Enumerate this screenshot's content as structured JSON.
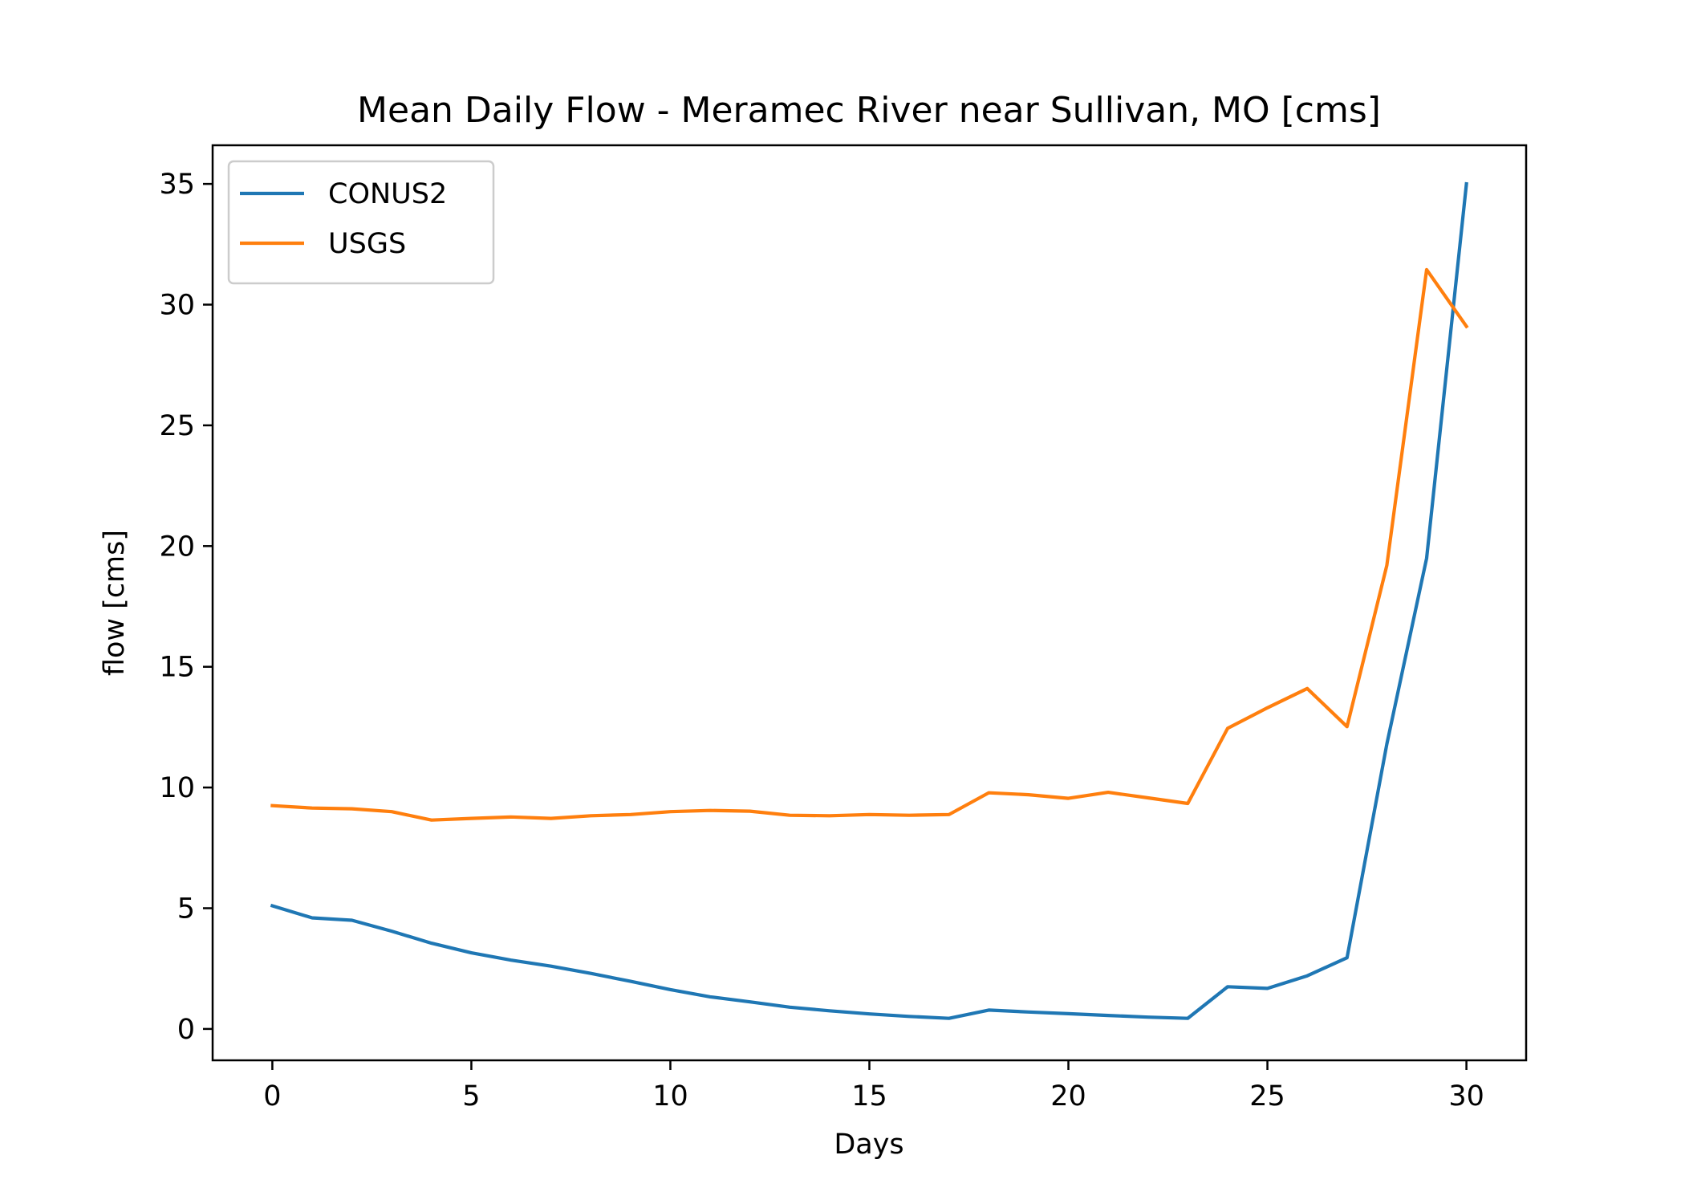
{
  "chart_data": {
    "type": "line",
    "title": "Mean Daily Flow - Meramec River near Sullivan, MO [cms]",
    "xlabel": "Days",
    "ylabel": "flow [cms]",
    "xlim": [
      -1.5,
      31.5
    ],
    "ylim": [
      -1.3,
      36.6
    ],
    "xticks": [
      0,
      5,
      10,
      15,
      20,
      25,
      30
    ],
    "yticks": [
      0,
      5,
      10,
      15,
      20,
      25,
      30,
      35
    ],
    "grid": false,
    "legend_position": "top-left",
    "x": [
      0,
      1,
      2,
      3,
      4,
      5,
      6,
      7,
      8,
      9,
      10,
      11,
      12,
      13,
      14,
      15,
      16,
      17,
      18,
      19,
      20,
      21,
      22,
      23,
      24,
      25,
      26,
      27,
      28,
      29,
      30
    ],
    "series": [
      {
        "name": "CONUS2",
        "color": "#1f77b4",
        "values": [
          5.1,
          4.6,
          4.5,
          4.05,
          3.55,
          3.15,
          2.85,
          2.6,
          2.3,
          1.97,
          1.63,
          1.33,
          1.12,
          0.9,
          0.75,
          0.62,
          0.52,
          0.44,
          0.78,
          0.7,
          0.63,
          0.56,
          0.49,
          0.44,
          1.75,
          1.68,
          2.2,
          2.95,
          11.8,
          19.5,
          35.0
        ]
      },
      {
        "name": "USGS",
        "color": "#ff7f0e",
        "values": [
          9.25,
          9.15,
          9.12,
          9.0,
          8.65,
          8.72,
          8.78,
          8.72,
          8.83,
          8.88,
          9.0,
          9.05,
          9.02,
          8.85,
          8.83,
          8.88,
          8.85,
          8.88,
          9.78,
          9.7,
          9.55,
          9.8,
          9.57,
          9.34,
          12.45,
          13.3,
          14.1,
          12.52,
          19.2,
          31.45,
          29.1
        ]
      }
    ]
  }
}
